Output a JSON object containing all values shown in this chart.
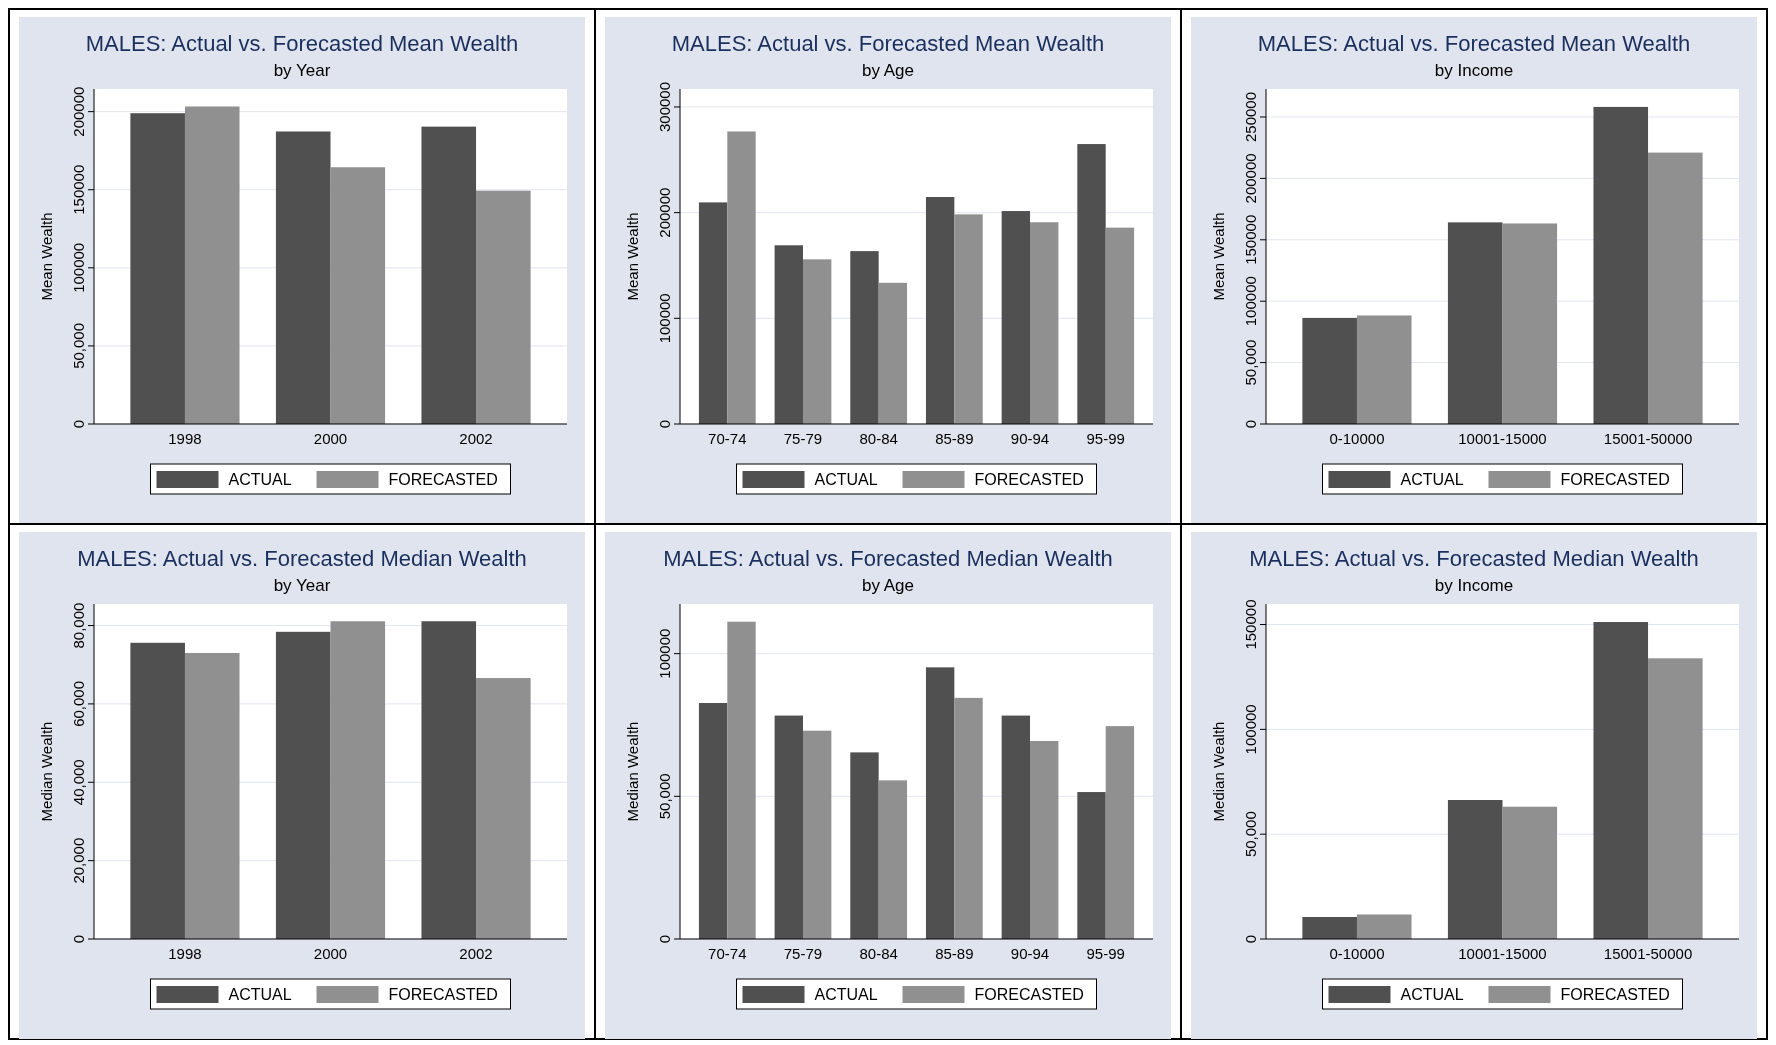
{
  "chart_data": [
    {
      "type": "bar",
      "title": "MALES: Actual vs. Forecasted Mean Wealth",
      "subtitle": "by Year",
      "ylabel": "Mean Wealth",
      "categories": [
        "1998",
        "2000",
        "2002"
      ],
      "series": [
        {
          "name": "ACTUAL",
          "color": "#505050",
          "values": [
            199000,
            187300,
            190400
          ]
        },
        {
          "name": "FORECASTED",
          "color": "#909090",
          "values": [
            203300,
            164400,
            149400
          ]
        }
      ],
      "ylim": [
        0,
        214500
      ],
      "yticks": [
        0,
        {
          "value": 50000,
          "label": "50,000"
        },
        100000,
        150000,
        200000
      ],
      "grid": "y",
      "legend": "bottom"
    },
    {
      "type": "bar",
      "title": "MALES: Actual vs. Forecasted Mean Wealth",
      "subtitle": "by Age",
      "ylabel": "Mean Wealth",
      "categories": [
        "70-74",
        "75-79",
        "80-84",
        "85-89",
        "90-94",
        "95-99"
      ],
      "series": [
        {
          "name": "ACTUAL",
          "color": "#505050",
          "values": [
            209700,
            169100,
            163600,
            214800,
            201500,
            264900
          ]
        },
        {
          "name": "FORECASTED",
          "color": "#909090",
          "values": [
            276800,
            155800,
            133600,
            198400,
            190900,
            185800
          ]
        }
      ],
      "ylim": [
        0,
        317000
      ],
      "yticks": [
        0,
        100000,
        200000,
        300000
      ],
      "grid": "y",
      "legend": "bottom"
    },
    {
      "type": "bar",
      "title": "MALES: Actual vs. Forecasted Mean Wealth",
      "subtitle": "by Income",
      "ylabel": "Mean Wealth",
      "categories": [
        "0-10000",
        "10001-15000",
        "15001-50000"
      ],
      "series": [
        {
          "name": "ACTUAL",
          "color": "#505050",
          "values": [
            86400,
            164200,
            258200
          ]
        },
        {
          "name": "FORECASTED",
          "color": "#909090",
          "values": [
            88400,
            163300,
            221000
          ]
        }
      ],
      "ylim": [
        0,
        272800
      ],
      "yticks": [
        0,
        {
          "value": 50000,
          "label": "50,000"
        },
        100000,
        150000,
        200000,
        250000
      ],
      "grid": "y",
      "legend": "bottom"
    },
    {
      "type": "bar",
      "title": "MALES: Actual vs. Forecasted Median Wealth",
      "subtitle": "by Year",
      "ylabel": "Median Wealth",
      "categories": [
        "1998",
        "2000",
        "2002"
      ],
      "series": [
        {
          "name": "ACTUAL",
          "color": "#505050",
          "values": [
            75600,
            78400,
            81100
          ]
        },
        {
          "name": "FORECASTED",
          "color": "#909090",
          "values": [
            73000,
            81100,
            66600
          ]
        }
      ],
      "ylim": [
        0,
        85500
      ],
      "yticks": [
        0,
        {
          "value": 20000,
          "label": "20,000"
        },
        {
          "value": 40000,
          "label": "40,000"
        },
        {
          "value": 60000,
          "label": "60,000"
        },
        {
          "value": 80000,
          "label": "80,000"
        }
      ],
      "grid": "y",
      "legend": "bottom"
    },
    {
      "type": "bar",
      "title": "MALES: Actual vs. Forecasted Median Wealth",
      "subtitle": "by Age",
      "ylabel": "Median Wealth",
      "categories": [
        "70-74",
        "75-79",
        "80-84",
        "85-89",
        "90-94",
        "95-99"
      ],
      "series": [
        {
          "name": "ACTUAL",
          "color": "#505050",
          "values": [
            82700,
            78300,
            65400,
            95200,
            78300,
            51500
          ]
        },
        {
          "name": "FORECASTED",
          "color": "#909090",
          "values": [
            111200,
            73000,
            55600,
            84500,
            69400,
            74600
          ]
        }
      ],
      "ylim": [
        0,
        117400
      ],
      "yticks": [
        0,
        {
          "value": 50000,
          "label": "50,000"
        },
        100000
      ],
      "grid": "y",
      "legend": "bottom"
    },
    {
      "type": "bar",
      "title": "MALES: Actual vs. Forecasted Median Wealth",
      "subtitle": "by Income",
      "ylabel": "Median Wealth",
      "categories": [
        "0-10000",
        "10001-15000",
        "15001-50000"
      ],
      "series": [
        {
          "name": "ACTUAL",
          "color": "#505050",
          "values": [
            10500,
            66300,
            151200
          ]
        },
        {
          "name": "FORECASTED",
          "color": "#909090",
          "values": [
            11700,
            63100,
            133900
          ]
        }
      ],
      "ylim": [
        0,
        159800
      ],
      "yticks": [
        0,
        {
          "value": 50000,
          "label": "50,000"
        },
        100000,
        150000
      ],
      "grid": "y",
      "legend": "bottom"
    }
  ]
}
